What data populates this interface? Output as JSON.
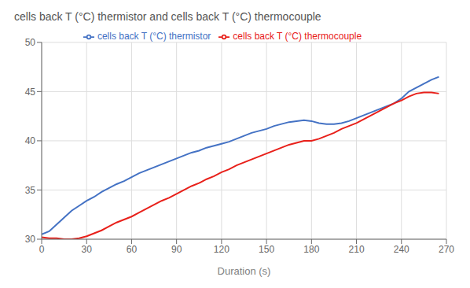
{
  "chart_data": {
    "type": "line",
    "title": "cells back T (°C) thermistor and cells back T (°C) thermocouple",
    "xlabel": "Duration (s)",
    "x": [
      0,
      5,
      10,
      15,
      20,
      25,
      30,
      35,
      40,
      45,
      50,
      55,
      60,
      65,
      70,
      75,
      80,
      85,
      90,
      95,
      100,
      105,
      110,
      115,
      120,
      125,
      130,
      135,
      140,
      145,
      150,
      155,
      160,
      165,
      170,
      175,
      180,
      185,
      190,
      195,
      200,
      205,
      210,
      215,
      220,
      225,
      230,
      235,
      240,
      245,
      250,
      255,
      260,
      265
    ],
    "series": [
      {
        "name": "cells back T (°C) thermistor",
        "color": "#4472C4",
        "values": [
          30.5,
          30.8,
          31.5,
          32.2,
          32.9,
          33.4,
          33.9,
          34.3,
          34.8,
          35.2,
          35.6,
          35.9,
          36.3,
          36.7,
          37.0,
          37.3,
          37.6,
          37.9,
          38.2,
          38.5,
          38.8,
          39.0,
          39.3,
          39.5,
          39.7,
          39.9,
          40.2,
          40.5,
          40.8,
          41.0,
          41.2,
          41.5,
          41.7,
          41.9,
          42.0,
          42.1,
          42.0,
          41.8,
          41.7,
          41.7,
          41.8,
          42.0,
          42.3,
          42.6,
          42.9,
          43.2,
          43.5,
          43.8,
          44.3,
          45.0,
          45.4,
          45.8,
          46.2,
          46.5
        ]
      },
      {
        "name": "cells back T (°C) thermocouple",
        "color": "#E8201A",
        "values": [
          30.2,
          30.1,
          30.1,
          30.0,
          30.0,
          30.1,
          30.3,
          30.6,
          30.9,
          31.3,
          31.7,
          32.0,
          32.3,
          32.7,
          33.1,
          33.5,
          33.9,
          34.2,
          34.6,
          35.0,
          35.4,
          35.7,
          36.1,
          36.4,
          36.8,
          37.1,
          37.5,
          37.8,
          38.1,
          38.4,
          38.7,
          39.0,
          39.3,
          39.6,
          39.8,
          40.0,
          40.0,
          40.2,
          40.5,
          40.8,
          41.2,
          41.5,
          41.8,
          42.2,
          42.6,
          43.0,
          43.4,
          43.8,
          44.1,
          44.5,
          44.8,
          44.9,
          44.9,
          44.8
        ]
      }
    ],
    "xlim": [
      0,
      270
    ],
    "ylim": [
      30,
      50
    ],
    "xticks": [
      0,
      30,
      60,
      90,
      120,
      150,
      180,
      210,
      240,
      270
    ],
    "yticks": [
      30,
      35,
      40,
      45,
      50
    ],
    "grid": true,
    "legend": "top"
  }
}
